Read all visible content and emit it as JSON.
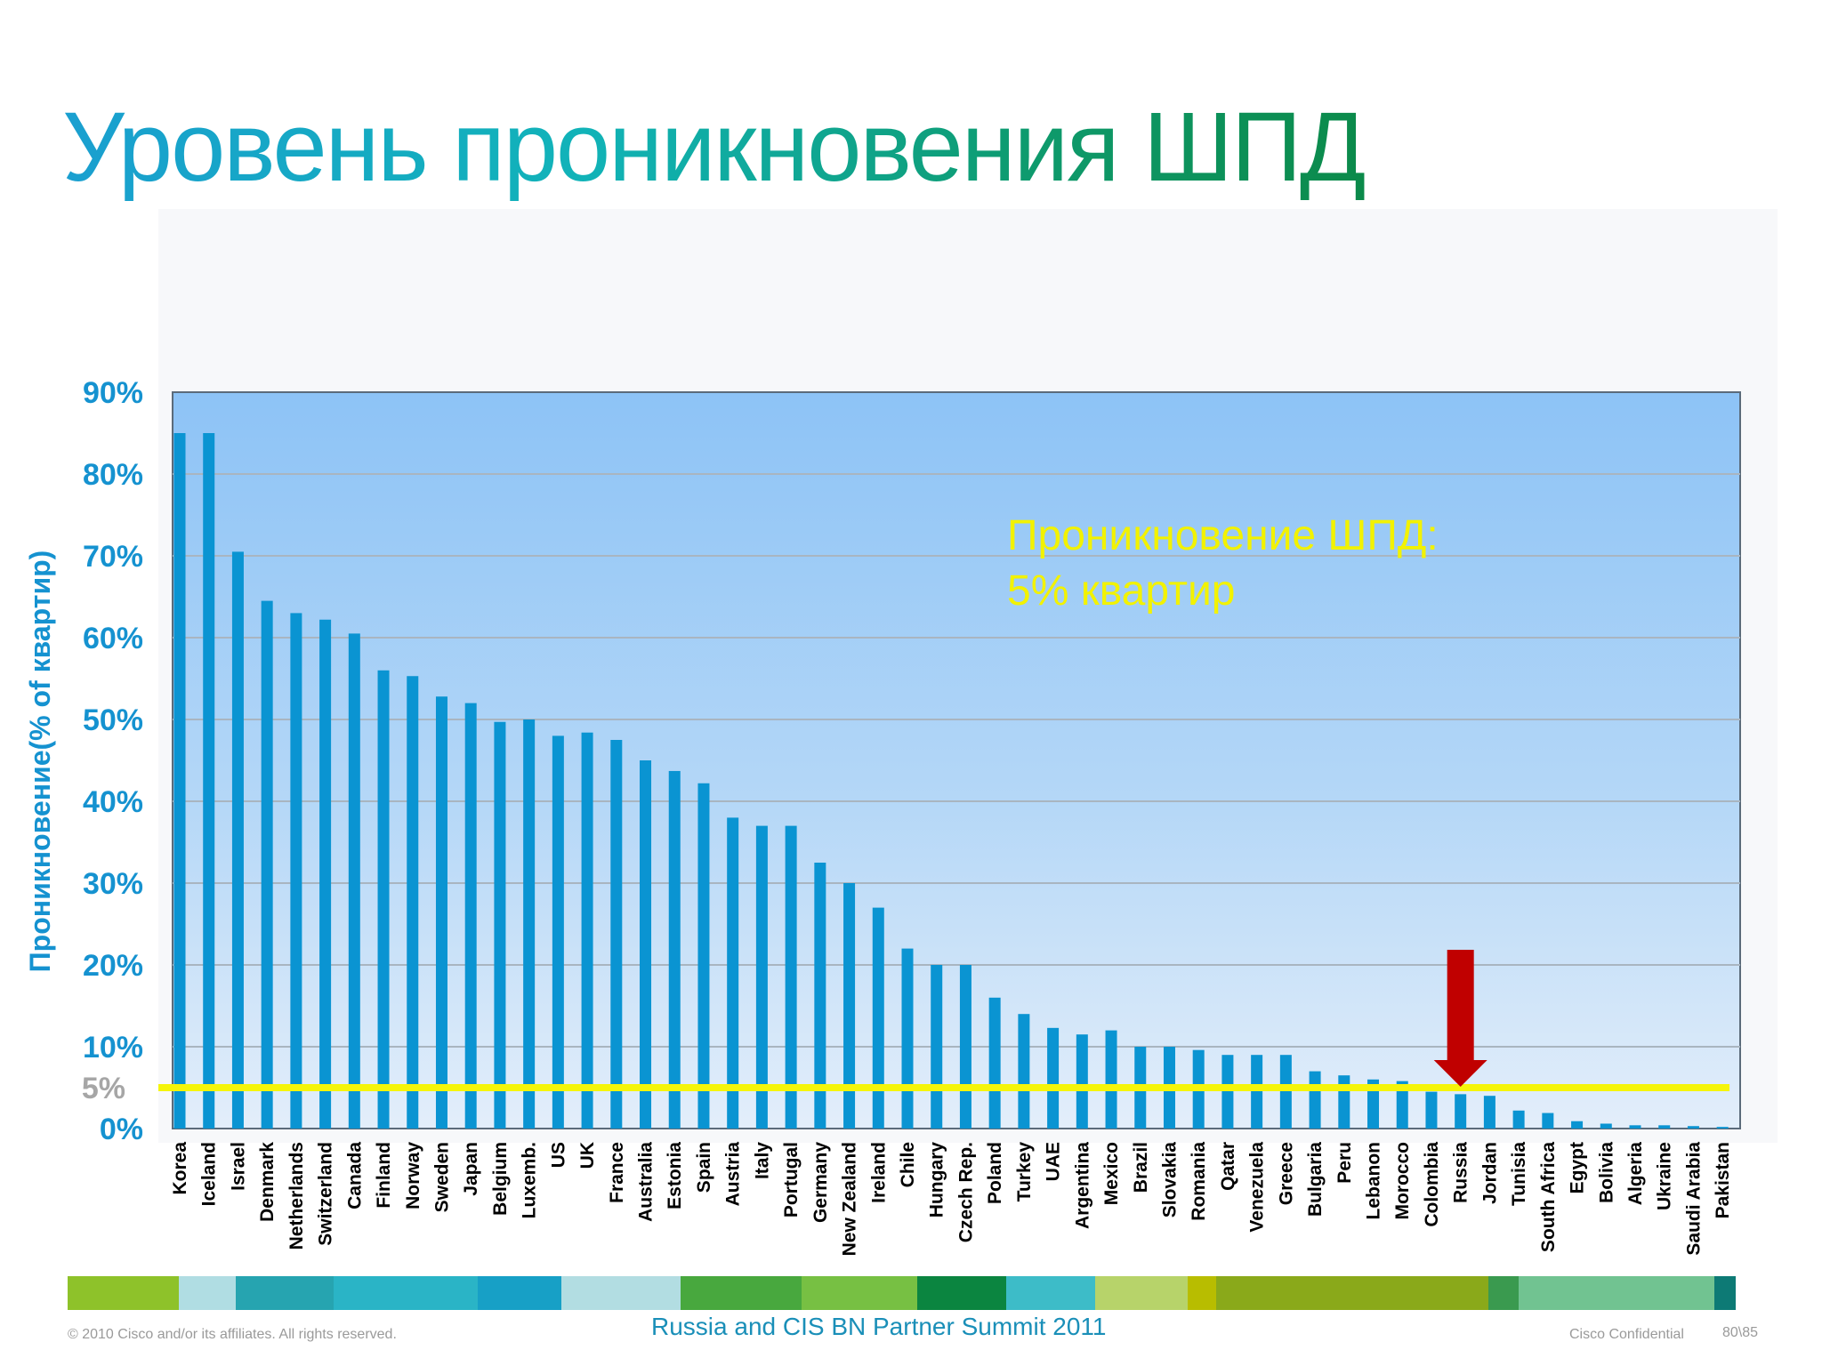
{
  "slide": {
    "title": "Уровень проникновения ШПД"
  },
  "chart_data": {
    "type": "bar",
    "ylabel": "Проникновение(% of квартир)",
    "ylim": [
      0,
      90
    ],
    "yticks": [
      "90%",
      "80%",
      "70%",
      "60%",
      "50%",
      "40%",
      "30%",
      "20%",
      "10%",
      "0%"
    ],
    "ytick_values": [
      90,
      80,
      70,
      60,
      50,
      40,
      30,
      20,
      10,
      0
    ],
    "grid": true,
    "categories": [
      "Korea",
      "Iceland",
      "Israel",
      "Denmark",
      "Netherlands",
      "Switzerland",
      "Canada",
      "Finland",
      "Norway",
      "Sweden",
      "Japan",
      "Belgium",
      "Luxemb.",
      "US",
      "UK",
      "France",
      "Australia",
      "Estonia",
      "Spain",
      "Austria",
      "Italy",
      "Portugal",
      "Germany",
      "New Zealand",
      "Ireland",
      "Chile",
      "Hungary",
      "Czech Rep.",
      "Poland",
      "Turkey",
      "UAE",
      "Argentina",
      "Mexico",
      "Brazil",
      "Slovakia",
      "Romania",
      "Qatar",
      "Venezuela",
      "Greece",
      "Bulgaria",
      "Peru",
      "Lebanon",
      "Morocco",
      "Colombia",
      "Russia",
      "Jordan",
      "Tunisia",
      "South Africa",
      "Egypt",
      "Bolivia",
      "Algeria",
      "Ukraine",
      "Saudi Arabia",
      "Pakistan"
    ],
    "values": [
      85,
      85,
      70.5,
      64.5,
      63,
      62.2,
      60.5,
      56,
      55.3,
      52.8,
      52,
      49.7,
      50,
      48,
      48.4,
      47.5,
      45,
      43.7,
      42.2,
      38,
      37,
      37,
      32.5,
      30,
      27,
      22,
      20,
      20,
      16,
      14,
      12.3,
      11.5,
      12,
      10,
      10,
      9.6,
      9,
      9,
      9,
      7,
      6.5,
      6,
      5.8,
      4.5,
      4.2,
      4,
      2.2,
      1.9,
      0.9,
      0.6,
      0.4,
      0.4,
      0.3,
      0.2
    ],
    "highlight_category": "Russia",
    "reference_line": {
      "value": 5,
      "label": "5%",
      "color": "#f5f50a"
    },
    "annotation": {
      "line1": "Проникновение ШПД:",
      "line2": "5% квартир",
      "color": "#f2f200"
    },
    "bar_color": "#0a94d2",
    "arrow_color": "#c00000"
  },
  "footer": {
    "copyright": "© 2010 Cisco and/or its affiliates. All rights reserved.",
    "event": "Russia and CIS BN Partner Summit 2011",
    "confidential": "Cisco Confidential",
    "page": "80\\85",
    "strip_colors": [
      "#8ec22a",
      "#b0dde3",
      "#26a4b0",
      "#2ab4c6",
      "#17a0c6",
      "#b2dde2",
      "#48a83e",
      "#77c043",
      "#0b8540",
      "#3dbcc8",
      "#b7d36a",
      "#b8bd00",
      "#8aa91a",
      "#3a9a4f",
      "#71c391",
      "#0d7a75"
    ]
  }
}
